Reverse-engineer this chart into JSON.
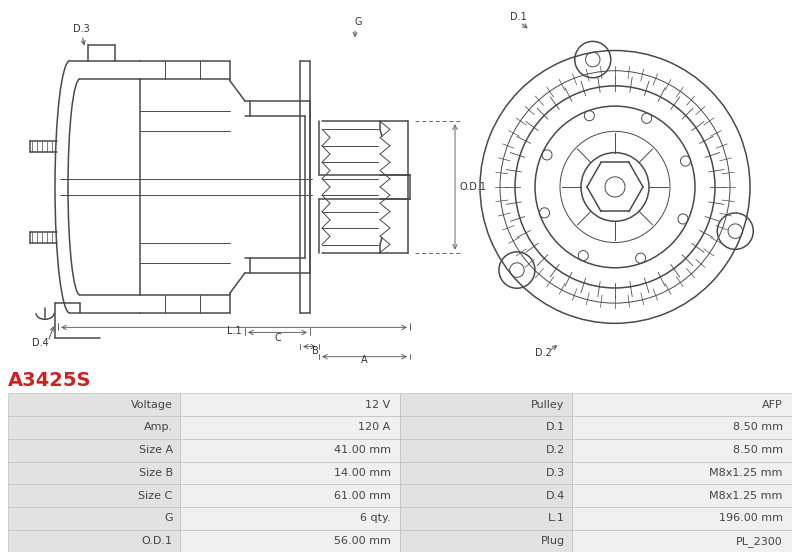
{
  "title": "A3425S",
  "title_color": "#cc2222",
  "bg_color": "#ffffff",
  "table_rows": [
    [
      "Voltage",
      "12 V",
      "Pulley",
      "AFP"
    ],
    [
      "Amp.",
      "120 A",
      "D.1",
      "8.50 mm"
    ],
    [
      "Size A",
      "41.00 mm",
      "D.2",
      "8.50 mm"
    ],
    [
      "Size B",
      "14.00 mm",
      "D.3",
      "M8x1.25 mm"
    ],
    [
      "Size C",
      "61.00 mm",
      "D.4",
      "M8x1.25 mm"
    ],
    [
      "G",
      "6 qty.",
      "L.1",
      "196.00 mm"
    ],
    [
      "O.D.1",
      "56.00 mm",
      "Plug",
      "PL_2300"
    ]
  ],
  "col1_color": "#e2e2e2",
  "col2_color": "#f0f0f0",
  "col3_color": "#e2e2e2",
  "col4_color": "#f0f0f0",
  "line_color": "#4a4a4a",
  "dim_color": "#666666",
  "label_color": "#333333",
  "drawing_bg": "#ffffff"
}
